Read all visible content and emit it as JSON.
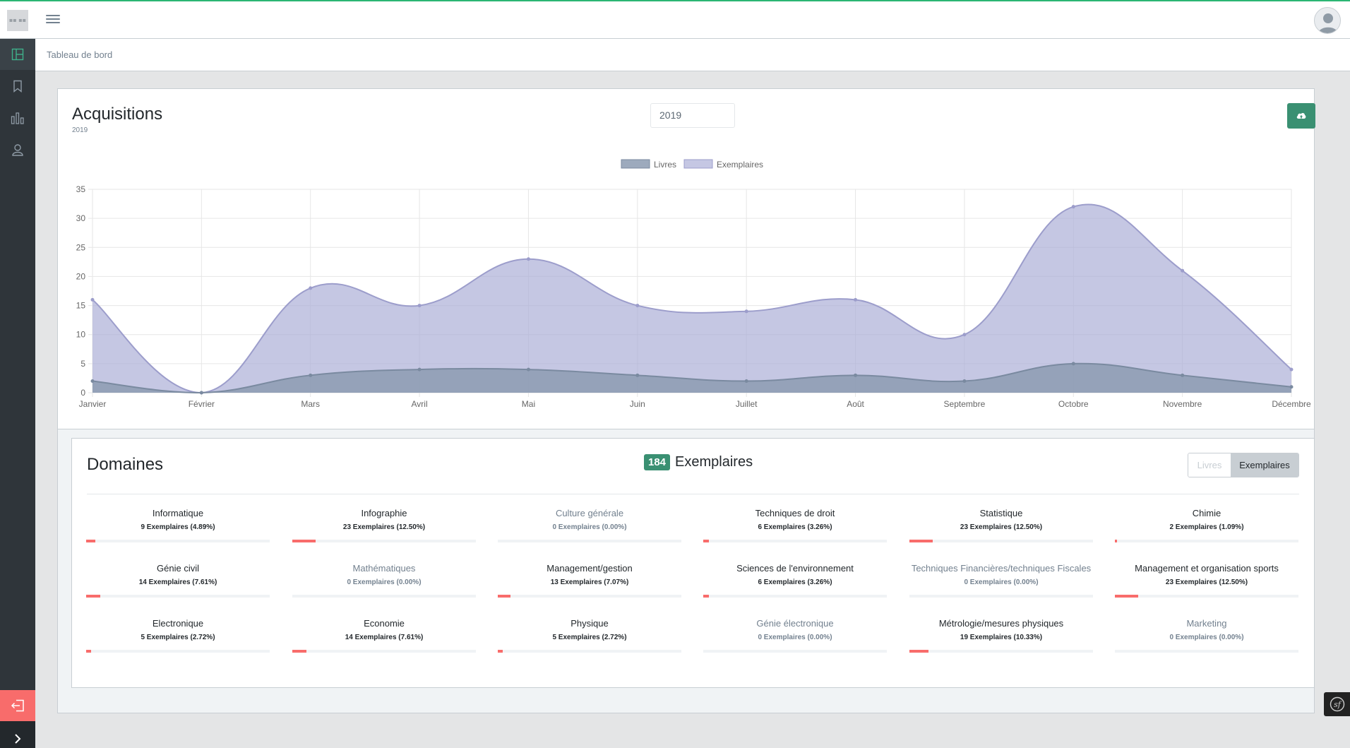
{
  "colors": {
    "accent": "#3a9072",
    "topline": "#2bb673",
    "danger": "#f86c6b",
    "sidebar": "#2f353a",
    "livres": "#8c9bb1",
    "exemplaires": "#c2c3e2"
  },
  "header": {
    "logo_text": "▪▪ ▪▪"
  },
  "breadcrumb": {
    "current": "Tableau de bord"
  },
  "sidebar": {
    "items": [
      {
        "icon": "dashboard-icon"
      },
      {
        "icon": "bookmark-icon"
      },
      {
        "icon": "bar-chart-icon"
      },
      {
        "icon": "user-icon"
      }
    ]
  },
  "acquisitions": {
    "title": "Acquisitions",
    "subtitle": "2019",
    "year_value": "2019"
  },
  "chart_data": {
    "type": "area",
    "title": "Acquisitions",
    "x": [
      "Janvier",
      "Février",
      "Mars",
      "Avril",
      "Mai",
      "Juin",
      "Juillet",
      "Août",
      "Septembre",
      "Octobre",
      "Novembre",
      "Décembre"
    ],
    "series": [
      {
        "name": "Livres",
        "values": [
          2,
          0,
          3,
          4,
          4,
          3,
          2,
          3,
          2,
          5,
          3,
          1
        ]
      },
      {
        "name": "Exemplaires",
        "values": [
          16,
          0,
          18,
          15,
          23,
          15,
          14,
          16,
          10,
          32,
          21,
          4
        ]
      }
    ],
    "yticks": [
      0,
      5,
      10,
      15,
      20,
      25,
      30,
      35
    ],
    "ylim": [
      0,
      35
    ],
    "legend": "top-center",
    "grid": true
  },
  "domaines": {
    "title": "Domaines",
    "count": "184",
    "count_label": "Exemplaires",
    "toggle": {
      "livres": "Livres",
      "exemplaires": "Exemplaires"
    },
    "items": [
      {
        "name": "Informatique",
        "value": "9 Exemplaires (4.89%)",
        "pct": 4.89
      },
      {
        "name": "Infographie",
        "value": "23 Exemplaires (12.50%)",
        "pct": 12.5
      },
      {
        "name": "Culture générale",
        "value": "0 Exemplaires (0.00%)",
        "pct": 0
      },
      {
        "name": "Techniques de droit",
        "value": "6 Exemplaires (3.26%)",
        "pct": 3.26
      },
      {
        "name": "Statistique",
        "value": "23 Exemplaires (12.50%)",
        "pct": 12.5
      },
      {
        "name": "Chimie",
        "value": "2 Exemplaires (1.09%)",
        "pct": 1.09
      },
      {
        "name": "Génie civil",
        "value": "14 Exemplaires (7.61%)",
        "pct": 7.61
      },
      {
        "name": "Mathématiques",
        "value": "0 Exemplaires (0.00%)",
        "pct": 0
      },
      {
        "name": "Management/gestion",
        "value": "13 Exemplaires (7.07%)",
        "pct": 7.07
      },
      {
        "name": "Sciences de l'environnement",
        "value": "6 Exemplaires (3.26%)",
        "pct": 3.26
      },
      {
        "name": "Techniques Financières/techniques Fiscales",
        "value": "0 Exemplaires (0.00%)",
        "pct": 0
      },
      {
        "name": "Management et organisation sports",
        "value": "23 Exemplaires (12.50%)",
        "pct": 12.5
      },
      {
        "name": "Electronique",
        "value": "5 Exemplaires (2.72%)",
        "pct": 2.72
      },
      {
        "name": "Economie",
        "value": "14 Exemplaires (7.61%)",
        "pct": 7.61
      },
      {
        "name": "Physique",
        "value": "5 Exemplaires (2.72%)",
        "pct": 2.72
      },
      {
        "name": "Génie électronique",
        "value": "0 Exemplaires (0.00%)",
        "pct": 0
      },
      {
        "name": "Métrologie/mesures physiques",
        "value": "19 Exemplaires (10.33%)",
        "pct": 10.33
      },
      {
        "name": "Marketing",
        "value": "0 Exemplaires (0.00%)",
        "pct": 0
      }
    ]
  }
}
